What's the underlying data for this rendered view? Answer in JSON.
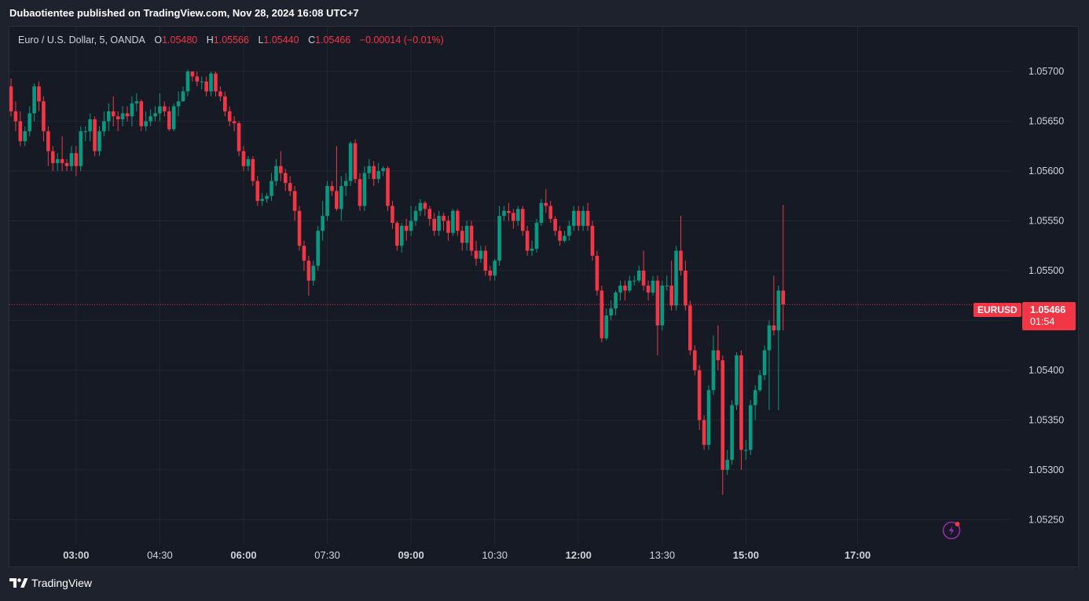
{
  "header": {
    "published": "Dubaotientee published on TradingView.com, Nov 28, 2024 16:08 UTC+7"
  },
  "legend": {
    "symbol": "Euro / U.S. Dollar, 5, OANDA",
    "o_label": "O",
    "o_value": "1.05480",
    "h_label": "H",
    "h_value": "1.05566",
    "l_label": "L",
    "l_value": "1.05440",
    "c_label": "C",
    "c_value": "1.05466",
    "change": "−0.00014 (−0.01%)"
  },
  "price_tag": {
    "symbol": "EURUSD",
    "price": "1.05466",
    "countdown": "01:54"
  },
  "footer": {
    "brand": "TradingView"
  },
  "colors": {
    "up": "#089981",
    "down": "#f23645",
    "grid": "#232632",
    "bg": "#161a25",
    "text": "#d1d4dc",
    "accent": "#9c27b0"
  },
  "icons": {
    "lightning": "lightning-icon",
    "logo": "tradingview-logo-icon"
  },
  "chart_data": {
    "type": "candlestick",
    "interval": "5",
    "ylim": [
      1.05225,
      1.05745
    ],
    "y_ticks": [
      "1.05250",
      "1.05300",
      "1.05350",
      "1.05400",
      "1.05450",
      "1.05500",
      "1.05550",
      "1.05600",
      "1.05650",
      "1.05700"
    ],
    "x_ticks": [
      {
        "label": "03:00",
        "bold": true,
        "index": 14
      },
      {
        "label": "04:30",
        "bold": false,
        "index": 32
      },
      {
        "label": "06:00",
        "bold": true,
        "index": 50
      },
      {
        "label": "07:30",
        "bold": false,
        "index": 68
      },
      {
        "label": "09:00",
        "bold": true,
        "index": 86
      },
      {
        "label": "10:30",
        "bold": false,
        "index": 104
      },
      {
        "label": "12:00",
        "bold": true,
        "index": 122
      },
      {
        "label": "13:30",
        "bold": false,
        "index": 140
      },
      {
        "label": "15:00",
        "bold": true,
        "index": 158
      },
      {
        "label": "17:00",
        "bold": true,
        "index": 182
      }
    ],
    "last_price": 1.05466,
    "candles": [
      [
        1.05685,
        1.0566,
        1.05693,
        1.05655
      ],
      [
        1.0566,
        1.0565,
        1.0567,
        1.0564
      ],
      [
        1.0565,
        1.0563,
        1.0566,
        1.05625
      ],
      [
        1.0563,
        1.0564,
        1.05645,
        1.05625
      ],
      [
        1.0564,
        1.05658,
        1.05665,
        1.05635
      ],
      [
        1.05658,
        1.05685,
        1.05688,
        1.0565
      ],
      [
        1.05685,
        1.0567,
        1.0569,
        1.0566
      ],
      [
        1.0567,
        1.0564,
        1.05675,
        1.0563
      ],
      [
        1.0564,
        1.0562,
        1.05645,
        1.05605
      ],
      [
        1.0562,
        1.05608,
        1.05625,
        1.056
      ],
      [
        1.05608,
        1.05612,
        1.05618,
        1.056
      ],
      [
        1.05612,
        1.05608,
        1.05635,
        1.056
      ],
      [
        1.05608,
        1.05605,
        1.05612,
        1.056
      ],
      [
        1.05605,
        1.05618,
        1.05625,
        1.056
      ],
      [
        1.05618,
        1.05605,
        1.05625,
        1.05595
      ],
      [
        1.05605,
        1.0564,
        1.05645,
        1.056
      ],
      [
        1.0564,
        1.0564,
        1.05645,
        1.0563
      ],
      [
        1.0564,
        1.05652,
        1.05658,
        1.0563
      ],
      [
        1.05652,
        1.0562,
        1.05655,
        1.05615
      ],
      [
        1.0562,
        1.0564,
        1.05645,
        1.05615
      ],
      [
        1.0564,
        1.0565,
        1.0566,
        1.05635
      ],
      [
        1.0565,
        1.0566,
        1.05668,
        1.0564
      ],
      [
        1.0566,
        1.05655,
        1.05675,
        1.05645
      ],
      [
        1.05655,
        1.05652,
        1.0566,
        1.0564
      ],
      [
        1.05652,
        1.05658,
        1.05665,
        1.05645
      ],
      [
        1.05658,
        1.05655,
        1.05665,
        1.0565
      ],
      [
        1.05655,
        1.05668,
        1.05675,
        1.05645
      ],
      [
        1.05668,
        1.0567,
        1.05678,
        1.0566
      ],
      [
        1.0567,
        1.05645,
        1.05672,
        1.0564
      ],
      [
        1.05645,
        1.0565,
        1.0566,
        1.0564
      ],
      [
        1.0565,
        1.05655,
        1.05662,
        1.05645
      ],
      [
        1.05655,
        1.05658,
        1.05665,
        1.0565
      ],
      [
        1.05658,
        1.05665,
        1.05678,
        1.0565
      ],
      [
        1.05665,
        1.0566,
        1.0567,
        1.05655
      ],
      [
        1.0566,
        1.05642,
        1.05665,
        1.0564
      ],
      [
        1.05642,
        1.05665,
        1.05668,
        1.0564
      ],
      [
        1.05665,
        1.0567,
        1.0568,
        1.05655
      ],
      [
        1.0567,
        1.0568,
        1.05685,
        1.0567
      ],
      [
        1.0568,
        1.057,
        1.05702,
        1.05675
      ],
      [
        1.057,
        1.05695,
        1.057,
        1.0569
      ],
      [
        1.05695,
        1.0569,
        1.057,
        1.05685
      ],
      [
        1.0569,
        1.0569,
        1.05695,
        1.05682
      ],
      [
        1.0569,
        1.0568,
        1.05695,
        1.05675
      ],
      [
        1.0568,
        1.05698,
        1.057,
        1.05675
      ],
      [
        1.05698,
        1.0568,
        1.057,
        1.05675
      ],
      [
        1.0568,
        1.05675,
        1.05685,
        1.0567
      ],
      [
        1.05675,
        1.0566,
        1.0568,
        1.05655
      ],
      [
        1.0566,
        1.0565,
        1.05665,
        1.05645
      ],
      [
        1.0565,
        1.05648,
        1.05655,
        1.0564
      ],
      [
        1.05648,
        1.0562,
        1.0565,
        1.05615
      ],
      [
        1.0562,
        1.05605,
        1.05625,
        1.056
      ],
      [
        1.05605,
        1.05612,
        1.05615,
        1.056
      ],
      [
        1.05612,
        1.0559,
        1.05615,
        1.05585
      ],
      [
        1.0559,
        1.0557,
        1.05595,
        1.05565
      ],
      [
        1.0557,
        1.05572,
        1.05578,
        1.05565
      ],
      [
        1.05572,
        1.05575,
        1.05578,
        1.05568
      ],
      [
        1.05575,
        1.0559,
        1.05598,
        1.0557
      ],
      [
        1.0559,
        1.05605,
        1.05612,
        1.05585
      ],
      [
        1.05605,
        1.05598,
        1.0562,
        1.0559
      ],
      [
        1.05598,
        1.05588,
        1.05602,
        1.0558
      ],
      [
        1.05588,
        1.0558,
        1.05595,
        1.05575
      ],
      [
        1.0558,
        1.0556,
        1.05585,
        1.0555
      ],
      [
        1.0556,
        1.05525,
        1.05565,
        1.0552
      ],
      [
        1.05525,
        1.0551,
        1.0553,
        1.055
      ],
      [
        1.0551,
        1.0549,
        1.05515,
        1.05475
      ],
      [
        1.0549,
        1.05505,
        1.0551,
        1.05485
      ],
      [
        1.05505,
        1.0554,
        1.05545,
        1.055
      ],
      [
        1.0554,
        1.05555,
        1.0557,
        1.0553
      ],
      [
        1.05555,
        1.05585,
        1.0559,
        1.0555
      ],
      [
        1.05585,
        1.0558,
        1.0559,
        1.05575
      ],
      [
        1.0558,
        1.05562,
        1.05625,
        1.0556
      ],
      [
        1.05562,
        1.05585,
        1.05595,
        1.0555
      ],
      [
        1.05585,
        1.0559,
        1.05598,
        1.05575
      ],
      [
        1.0559,
        1.05628,
        1.0563,
        1.05585
      ],
      [
        1.05628,
        1.05592,
        1.05632,
        1.05588
      ],
      [
        1.05592,
        1.05565,
        1.05598,
        1.0556
      ],
      [
        1.05565,
        1.05598,
        1.05605,
        1.0556
      ],
      [
        1.05598,
        1.05605,
        1.05612,
        1.05592
      ],
      [
        1.05605,
        1.05592,
        1.0561,
        1.05585
      ],
      [
        1.05592,
        1.056,
        1.05608,
        1.05588
      ],
      [
        1.056,
        1.05603,
        1.05605,
        1.05595
      ],
      [
        1.05603,
        1.05565,
        1.05605,
        1.0556
      ],
      [
        1.05565,
        1.05548,
        1.0557,
        1.05542
      ],
      [
        1.05548,
        1.05525,
        1.0555,
        1.0552
      ],
      [
        1.05525,
        1.05545,
        1.05548,
        1.05518
      ],
      [
        1.05545,
        1.0554,
        1.05552,
        1.0553
      ],
      [
        1.0554,
        1.0555,
        1.05565,
        1.05535
      ],
      [
        1.0555,
        1.0556,
        1.05565,
        1.05545
      ],
      [
        1.0556,
        1.05568,
        1.05572,
        1.05555
      ],
      [
        1.05568,
        1.05562,
        1.0557,
        1.05555
      ],
      [
        1.05562,
        1.05552,
        1.05565,
        1.05545
      ],
      [
        1.05552,
        1.0554,
        1.05558,
        1.05535
      ],
      [
        1.0554,
        1.05555,
        1.0556,
        1.05535
      ],
      [
        1.05555,
        1.0555,
        1.05558,
        1.0554
      ],
      [
        1.0555,
        1.05538,
        1.05555,
        1.0553
      ],
      [
        1.05538,
        1.0556,
        1.05562,
        1.05535
      ],
      [
        1.0556,
        1.0554,
        1.05562,
        1.05535
      ],
      [
        1.0554,
        1.05528,
        1.05545,
        1.0552
      ],
      [
        1.05528,
        1.05545,
        1.0555,
        1.0552
      ],
      [
        1.05545,
        1.0552,
        1.0555,
        1.05515
      ],
      [
        1.0552,
        1.05512,
        1.0553,
        1.05505
      ],
      [
        1.05512,
        1.0552,
        1.05525,
        1.05508
      ],
      [
        1.0552,
        1.055,
        1.05525,
        1.05495
      ],
      [
        1.055,
        1.05495,
        1.05505,
        1.0549
      ],
      [
        1.05495,
        1.0551,
        1.05512,
        1.0549
      ],
      [
        1.0551,
        1.05555,
        1.05565,
        1.05505
      ],
      [
        1.05555,
        1.0556,
        1.05565,
        1.0555
      ],
      [
        1.0556,
        1.05558,
        1.05568,
        1.0555
      ],
      [
        1.05558,
        1.0555,
        1.05562,
        1.05542
      ],
      [
        1.0555,
        1.05562,
        1.05565,
        1.05545
      ],
      [
        1.05562,
        1.0554,
        1.05565,
        1.05535
      ],
      [
        1.0554,
        1.0552,
        1.05545,
        1.05515
      ],
      [
        1.0552,
        1.05522,
        1.0553,
        1.05515
      ],
      [
        1.05522,
        1.05548,
        1.05552,
        1.05518
      ],
      [
        1.05548,
        1.05568,
        1.05572,
        1.05545
      ],
      [
        1.05568,
        1.05565,
        1.05582,
        1.05558
      ],
      [
        1.05565,
        1.05552,
        1.0557,
        1.05548
      ],
      [
        1.05552,
        1.0554,
        1.05555,
        1.05535
      ],
      [
        1.0554,
        1.0553,
        1.05545,
        1.05525
      ],
      [
        1.0553,
        1.05535,
        1.0554,
        1.05528
      ],
      [
        1.05535,
        1.05545,
        1.0555,
        1.0553
      ],
      [
        1.05545,
        1.0556,
        1.05565,
        1.0554
      ],
      [
        1.0556,
        1.05545,
        1.05565,
        1.0554
      ],
      [
        1.05545,
        1.0556,
        1.05565,
        1.0554
      ],
      [
        1.0556,
        1.05545,
        1.05568,
        1.0554
      ],
      [
        1.05545,
        1.05515,
        1.0555,
        1.0551
      ],
      [
        1.05515,
        1.0548,
        1.0552,
        1.05475
      ],
      [
        1.0548,
        1.05432,
        1.05485,
        1.05428
      ],
      [
        1.05432,
        1.05455,
        1.05462,
        1.0543
      ],
      [
        1.05455,
        1.05462,
        1.0547,
        1.0545
      ],
      [
        1.05462,
        1.05478,
        1.0548,
        1.05455
      ],
      [
        1.05478,
        1.05485,
        1.0549,
        1.0547
      ],
      [
        1.05485,
        1.0548,
        1.0549,
        1.0547
      ],
      [
        1.0548,
        1.0549,
        1.05495,
        1.05478
      ],
      [
        1.0549,
        1.0549,
        1.05495,
        1.05485
      ],
      [
        1.0549,
        1.055,
        1.05505,
        1.05488
      ],
      [
        1.055,
        1.05485,
        1.0552,
        1.0548
      ],
      [
        1.05485,
        1.05478,
        1.0549,
        1.0547
      ],
      [
        1.05478,
        1.0549,
        1.05495,
        1.05475
      ],
      [
        1.0549,
        1.05445,
        1.05495,
        1.05415
      ],
      [
        1.05445,
        1.05485,
        1.0549,
        1.0544
      ],
      [
        1.05485,
        1.05485,
        1.05495,
        1.0548
      ],
      [
        1.05485,
        1.05465,
        1.0551,
        1.0546
      ],
      [
        1.05465,
        1.0552,
        1.05525,
        1.0546
      ],
      [
        1.0552,
        1.055,
        1.05555,
        1.05495
      ],
      [
        1.055,
        1.05465,
        1.0551,
        1.0546
      ],
      [
        1.05465,
        1.0542,
        1.0547,
        1.05415
      ],
      [
        1.0542,
        1.054,
        1.05425,
        1.05395
      ],
      [
        1.054,
        1.0535,
        1.05405,
        1.0534
      ],
      [
        1.0535,
        1.05325,
        1.05355,
        1.0532
      ],
      [
        1.05325,
        1.0538,
        1.05385,
        1.0532
      ],
      [
        1.0538,
        1.0542,
        1.05435,
        1.05375
      ],
      [
        1.0542,
        1.0541,
        1.05445,
        1.054
      ],
      [
        1.0541,
        1.053,
        1.05415,
        1.05275
      ],
      [
        1.053,
        1.0531,
        1.0532,
        1.05295
      ],
      [
        1.0531,
        1.05365,
        1.0537,
        1.05305
      ],
      [
        1.05365,
        1.05415,
        1.05418,
        1.0536
      ],
      [
        1.05415,
        1.0532,
        1.0542,
        1.053
      ],
      [
        1.0532,
        1.0532,
        1.0533,
        1.0531
      ],
      [
        1.0532,
        1.05365,
        1.0537,
        1.05315
      ],
      [
        1.05365,
        1.0538,
        1.05385,
        1.0535
      ],
      [
        1.0538,
        1.05395,
        1.054,
        1.05378
      ],
      [
        1.05395,
        1.0542,
        1.05425,
        1.0539
      ],
      [
        1.0542,
        1.05445,
        1.0545,
        1.0536
      ],
      [
        1.05445,
        1.0544,
        1.05495,
        1.05435
      ],
      [
        1.0544,
        1.0548,
        1.05485,
        1.0536
      ],
      [
        1.0548,
        1.05466,
        1.05566,
        1.0544
      ]
    ]
  }
}
